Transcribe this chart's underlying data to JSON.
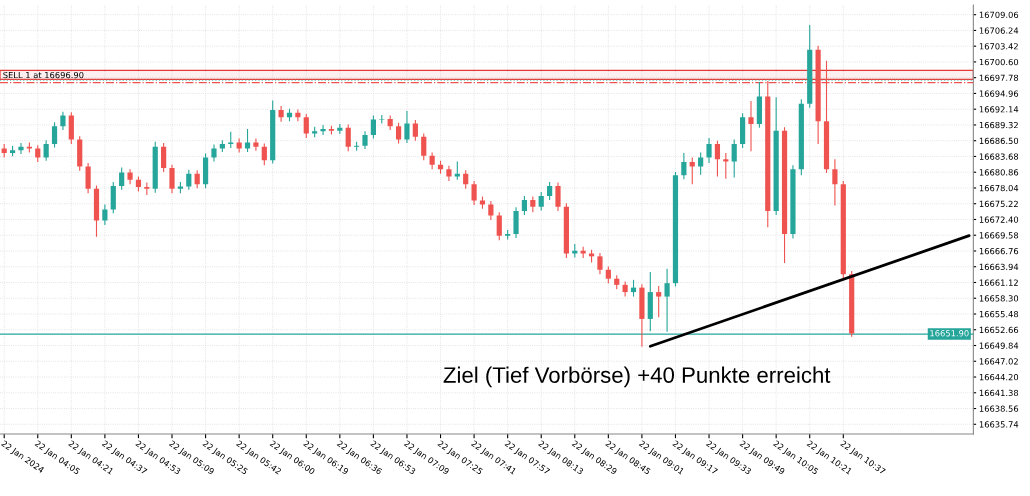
{
  "chart_data": {
    "type": "candlestick",
    "annotations": [
      "Ziel (Tief Vorbörse) +40 Punkte erreicht"
    ],
    "categories": [
      "22 Jan 2024",
      null,
      null,
      null,
      "22 Jan 04:05",
      null,
      null,
      null,
      "22 Jan 04:21",
      null,
      null,
      null,
      "22 Jan 04:37",
      null,
      null,
      null,
      "22 Jan 04:53",
      null,
      null,
      null,
      "22 Jan 05:09",
      null,
      null,
      null,
      "22 Jan 05:25",
      null,
      null,
      null,
      "22 Jan 05:42",
      null,
      null,
      null,
      "22 Jan 06:00",
      null,
      null,
      null,
      "22 Jan 06:19",
      null,
      null,
      null,
      "22 Jan 06:36",
      null,
      null,
      null,
      "22 Jan 06:53",
      null,
      null,
      null,
      "22 Jan 07:09",
      null,
      null,
      null,
      "22 Jan 07:25",
      null,
      null,
      null,
      "22 Jan 07:41",
      null,
      null,
      null,
      "22 Jan 07:57",
      null,
      null,
      null,
      "22 Jan 08:13",
      null,
      null,
      null,
      "22 Jan 08:29",
      null,
      null,
      null,
      "22 Jan 08:45",
      null,
      null,
      null,
      "22 Jan 09:01",
      null,
      null,
      null,
      "22 Jan 09:17",
      null,
      null,
      null,
      "22 Jan 09:33",
      null,
      null,
      null,
      "22 Jan 09:49",
      null,
      null,
      null,
      "22 Jan 10:05",
      null,
      null,
      null,
      "22 Jan 10:21",
      null,
      null,
      null,
      "22 Jan 10:37",
      null,
      null,
      null,
      null,
      null,
      null,
      null,
      null,
      null,
      null,
      null,
      null,
      null,
      null,
      null
    ],
    "ohlc": [
      [
        16685.1,
        16685.8,
        16683.6,
        16684.3
      ],
      [
        16684.3,
        16685.5,
        16683.8,
        16684.8
      ],
      [
        16684.8,
        16686.0,
        16684.2,
        16685.4
      ],
      [
        16685.4,
        16686.1,
        16684.5,
        16685.1
      ],
      [
        16685.1,
        16685.6,
        16682.8,
        16683.5
      ],
      [
        16683.5,
        16686.5,
        16683.0,
        16685.9
      ],
      [
        16685.9,
        16689.7,
        16685.4,
        16689.1
      ],
      [
        16689.1,
        16691.6,
        16688.5,
        16691.0
      ],
      [
        16691.0,
        16691.5,
        16686.0,
        16686.7
      ],
      [
        16686.7,
        16687.2,
        16681.2,
        16681.9
      ],
      [
        16681.9,
        16682.4,
        16677.2,
        16677.9
      ],
      [
        16677.9,
        16678.4,
        16669.4,
        16672.2
      ],
      [
        16672.2,
        16675.0,
        16671.5,
        16674.2
      ],
      [
        16674.2,
        16679.0,
        16673.6,
        16678.4
      ],
      [
        16678.4,
        16681.6,
        16677.8,
        16680.8
      ],
      [
        16680.8,
        16681.3,
        16678.8,
        16679.5
      ],
      [
        16679.5,
        16680.0,
        16677.5,
        16678.2
      ],
      [
        16678.2,
        16678.9,
        16676.9,
        16677.9
      ],
      [
        16677.9,
        16686.2,
        16677.3,
        16685.4
      ],
      [
        16685.4,
        16686.0,
        16681.0,
        16681.6
      ],
      [
        16681.6,
        16682.1,
        16677.2,
        16677.9
      ],
      [
        16677.9,
        16679.0,
        16677.2,
        16678.3
      ],
      [
        16678.3,
        16681.2,
        16677.8,
        16680.6
      ],
      [
        16680.6,
        16681.1,
        16678.1,
        16678.7
      ],
      [
        16678.7,
        16684.1,
        16678.1,
        16683.5
      ],
      [
        16683.5,
        16685.7,
        16682.9,
        16685.1
      ],
      [
        16685.1,
        16686.5,
        16684.6,
        16685.9
      ],
      [
        16685.9,
        16688.0,
        16685.3,
        16686.2
      ],
      [
        16686.2,
        16686.8,
        16684.5,
        16685.1
      ],
      [
        16685.1,
        16688.5,
        16684.6,
        16686.2
      ],
      [
        16686.2,
        16686.8,
        16684.8,
        16685.4
      ],
      [
        16685.4,
        16685.9,
        16682.2,
        16683.0
      ],
      [
        16683.0,
        16693.6,
        16682.5,
        16692.0
      ],
      [
        16692.0,
        16692.6,
        16690.0,
        16690.7
      ],
      [
        16690.7,
        16692.1,
        16690.1,
        16691.5
      ],
      [
        16691.5,
        16692.0,
        16690.1,
        16690.7
      ],
      [
        16690.7,
        16691.2,
        16687.1,
        16687.8
      ],
      [
        16687.8,
        16688.9,
        16687.2,
        16688.2
      ],
      [
        16688.2,
        16689.2,
        16687.6,
        16688.6
      ],
      [
        16688.6,
        16689.1,
        16687.7,
        16688.3
      ],
      [
        16688.3,
        16689.4,
        16687.8,
        16688.8
      ],
      [
        16688.8,
        16689.3,
        16684.7,
        16685.4
      ],
      [
        16685.4,
        16686.2,
        16684.8,
        16685.6
      ],
      [
        16685.6,
        16688.1,
        16685.1,
        16687.5
      ],
      [
        16687.5,
        16690.9,
        16687.0,
        16690.3
      ],
      [
        16690.3,
        16691.0,
        16689.7,
        16690.4
      ],
      [
        16690.4,
        16690.9,
        16688.5,
        16689.1
      ],
      [
        16689.1,
        16689.6,
        16686.1,
        16686.7
      ],
      [
        16686.7,
        16691.7,
        16686.2,
        16689.6
      ],
      [
        16689.6,
        16690.1,
        16686.6,
        16687.2
      ],
      [
        16687.2,
        16687.7,
        16683.1,
        16683.8
      ],
      [
        16683.8,
        16684.3,
        16681.5,
        16682.2
      ],
      [
        16682.2,
        16682.8,
        16680.7,
        16681.4
      ],
      [
        16681.4,
        16681.9,
        16679.4,
        16680.1
      ],
      [
        16680.1,
        16682.7,
        16679.6,
        16680.6
      ],
      [
        16680.6,
        16681.1,
        16678.0,
        16678.7
      ],
      [
        16678.7,
        16679.2,
        16675.1,
        16675.8
      ],
      [
        16675.8,
        16676.4,
        16674.4,
        16675.1
      ],
      [
        16675.1,
        16675.6,
        16672.4,
        16673.1
      ],
      [
        16673.1,
        16673.6,
        16668.8,
        16669.5
      ],
      [
        16669.5,
        16670.4,
        16668.9,
        16669.8
      ],
      [
        16669.8,
        16674.5,
        16669.2,
        16673.9
      ],
      [
        16673.9,
        16676.5,
        16673.3,
        16675.9
      ],
      [
        16675.9,
        16676.4,
        16673.8,
        16674.7
      ],
      [
        16674.7,
        16677.2,
        16674.1,
        16676.6
      ],
      [
        16676.6,
        16679.0,
        16676.0,
        16678.4
      ],
      [
        16678.4,
        16678.9,
        16674.0,
        16674.7
      ],
      [
        16674.7,
        16675.2,
        16665.6,
        16666.3
      ],
      [
        16666.3,
        16667.9,
        16665.7,
        16666.8
      ],
      [
        16666.8,
        16667.4,
        16665.6,
        16666.3
      ],
      [
        16666.3,
        16666.9,
        16664.8,
        16665.8
      ],
      [
        16665.8,
        16666.3,
        16662.7,
        16663.4
      ],
      [
        16663.4,
        16663.9,
        16661.1,
        16661.8
      ],
      [
        16661.8,
        16662.3,
        16660.0,
        16660.7
      ],
      [
        16660.7,
        16661.2,
        16658.7,
        16659.4
      ],
      [
        16659.4,
        16661.5,
        16658.7,
        16660.2
      ],
      [
        16660.2,
        16660.7,
        16649.7,
        16654.6
      ],
      [
        16654.6,
        16662.9,
        16652.5,
        16659.4
      ],
      [
        16659.4,
        16660.4,
        16655.0,
        16658.6
      ],
      [
        16658.6,
        16663.5,
        16652.4,
        16661.0
      ],
      [
        16661.0,
        16680.8,
        16660.5,
        16680.3
      ],
      [
        16680.3,
        16684.2,
        16679.7,
        16682.7
      ],
      [
        16682.7,
        16683.4,
        16678.8,
        16681.9
      ],
      [
        16681.9,
        16684.3,
        16680.5,
        16683.5
      ],
      [
        16683.5,
        16686.9,
        16682.6,
        16685.9
      ],
      [
        16685.9,
        16686.4,
        16680.2,
        16683.2
      ],
      [
        16683.2,
        16684.2,
        16679.8,
        16682.8
      ],
      [
        16682.8,
        16686.6,
        16680.0,
        16685.9
      ],
      [
        16685.9,
        16691.3,
        16685.3,
        16690.7
      ],
      [
        16690.7,
        16693.5,
        16684.7,
        16689.5
      ],
      [
        16689.5,
        16696.9,
        16688.9,
        16694.4
      ],
      [
        16694.4,
        16697.1,
        16671.1,
        16673.9
      ],
      [
        16673.9,
        16694.2,
        16673.3,
        16688.3
      ],
      [
        16688.3,
        16688.8,
        16664.7,
        16669.8
      ],
      [
        16669.8,
        16682.0,
        16669.1,
        16681.4
      ],
      [
        16681.4,
        16693.8,
        16680.4,
        16693.1
      ],
      [
        16693.1,
        16707.1,
        16692.5,
        16702.8
      ],
      [
        16702.8,
        16703.4,
        16686.0,
        16690.0
      ],
      [
        16690.0,
        16700.7,
        16680.8,
        16681.4
      ],
      [
        16681.4,
        16683.1,
        16675.0,
        16678.7
      ],
      [
        16678.7,
        16679.2,
        16661.9,
        16662.6
      ],
      [
        16662.6,
        16663.1,
        16651.5,
        16652.0
      ],
      null,
      null,
      null,
      null,
      null,
      null,
      null,
      null,
      null,
      null,
      null,
      null,
      null,
      null
    ],
    "colors": [
      "#ef5350",
      "#26a69a",
      "#26a69a",
      "#ef5350",
      "#ef5350",
      "#26a69a",
      "#26a69a",
      "#26a69a",
      "#ef5350",
      "#ef5350",
      "#ef5350",
      "#ef5350",
      "#26a69a",
      "#26a69a",
      "#26a69a",
      "#ef5350",
      "#ef5350",
      "#ef5350",
      "#26a69a",
      "#ef5350",
      "#ef5350",
      "#26a69a",
      "#26a69a",
      "#ef5350",
      "#26a69a",
      "#26a69a",
      "#26a69a",
      "#26a69a",
      "#ef5350",
      "#26a69a",
      "#ef5350",
      "#ef5350",
      "#26a69a",
      "#ef5350",
      "#26a69a",
      "#ef5350",
      "#ef5350",
      "#26a69a",
      "#26a69a",
      "#ef5350",
      "#26a69a",
      "#ef5350",
      "#26a69a",
      "#26a69a",
      "#26a69a",
      "#26a69a",
      "#ef5350",
      "#ef5350",
      "#26a69a",
      "#ef5350",
      "#ef5350",
      "#ef5350",
      "#ef5350",
      "#ef5350",
      "#26a69a",
      "#ef5350",
      "#ef5350",
      "#ef5350",
      "#ef5350",
      "#ef5350",
      "#26a69a",
      "#26a69a",
      "#26a69a",
      "#ef5350",
      "#26a69a",
      "#26a69a",
      "#ef5350",
      "#ef5350",
      "#26a69a",
      "#ef5350",
      "#ef5350",
      "#ef5350",
      "#ef5350",
      "#ef5350",
      "#ef5350",
      "#26a69a",
      "#ef5350",
      "#26a69a",
      "#ef5350",
      "#26a69a",
      "#26a69a",
      "#26a69a",
      "#ef5350",
      "#26a69a",
      "#26a69a",
      "#ef5350",
      "#ef5350",
      "#26a69a",
      "#26a69a",
      "#ef5350",
      "#26a69a",
      "#ef5350",
      "#26a69a",
      "#ef5350",
      "#26a69a",
      "#26a69a",
      "#26a69a",
      "#ef5350",
      "#ef5350",
      "#ef5350",
      "#ef5350",
      "#ef5350",
      null,
      null,
      null,
      null,
      null,
      null,
      null,
      null,
      null,
      null,
      null,
      null,
      null,
      null
    ],
    "series": [
      {
        "type": "line",
        "color": "#000000",
        "values": [
          null,
          null,
          null,
          null,
          null,
          null,
          null,
          null,
          null,
          null,
          null,
          null,
          null,
          null,
          null,
          null,
          null,
          null,
          null,
          null,
          null,
          null,
          null,
          null,
          null,
          null,
          null,
          null,
          null,
          null,
          null,
          null,
          null,
          null,
          null,
          null,
          null,
          null,
          null,
          null,
          null,
          null,
          null,
          null,
          null,
          null,
          null,
          null,
          null,
          null,
          null,
          null,
          null,
          null,
          null,
          null,
          null,
          null,
          null,
          null,
          null,
          null,
          null,
          null,
          null,
          null,
          null,
          null,
          null,
          null,
          null,
          null,
          null,
          null,
          null,
          null,
          null,
          16649.7,
          null,
          null,
          null,
          null,
          null,
          null,
          null,
          null,
          null,
          null,
          null,
          null,
          null,
          null,
          null,
          null,
          null,
          null,
          null,
          null,
          null,
          null,
          null,
          null,
          null,
          null,
          null,
          null,
          null,
          null,
          null,
          null,
          null,
          null,
          null,
          null,
          null,
          16669.5
        ]
      }
    ],
    "ylim": [
      16634.0,
      16710.8
    ],
    "yticks": [
      {
        "value": 16709.06,
        "label": "16709.06"
      },
      {
        "value": 16706.24,
        "label": "16706.24"
      },
      {
        "value": 16703.42,
        "label": "16703.42"
      },
      {
        "value": 16700.6,
        "label": "16700.60"
      },
      {
        "value": 16697.78,
        "label": "16697.78"
      },
      {
        "value": 16694.96,
        "label": "16694.96"
      },
      {
        "value": 16692.14,
        "label": "16692.14"
      },
      {
        "value": 16689.32,
        "label": "16689.32"
      },
      {
        "value": 16686.5,
        "label": "16686.50"
      },
      {
        "value": 16683.68,
        "label": "16683.68"
      },
      {
        "value": 16680.86,
        "label": "16680.86"
      },
      {
        "value": 16678.04,
        "label": "16678.04"
      },
      {
        "value": 16675.22,
        "label": "16675.22"
      },
      {
        "value": 16672.4,
        "label": "16672.40"
      },
      {
        "value": 16669.58,
        "label": "16669.58"
      },
      {
        "value": 16666.76,
        "label": "16666.76"
      },
      {
        "value": 16663.94,
        "label": "16663.94"
      },
      {
        "value": 16661.12,
        "label": "16661.12"
      },
      {
        "value": 16658.3,
        "label": "16658.30"
      },
      {
        "value": 16655.48,
        "label": "16655.48"
      },
      {
        "value": 16652.66,
        "label": "16652.66"
      },
      {
        "value": 16649.84,
        "label": "16649.84"
      },
      {
        "value": 16647.02,
        "label": "16647.02"
      },
      {
        "value": 16644.2,
        "label": "16644.20"
      },
      {
        "value": 16641.38,
        "label": "16641.38"
      },
      {
        "value": 16638.56,
        "label": "16638.56"
      },
      {
        "value": 16635.74,
        "label": "16635.74"
      }
    ],
    "grid": true,
    "ref_lines": [
      {
        "axis": "y",
        "value": 16696.9,
        "label": "SELL 1 at 16696.90",
        "color": "#ef5350",
        "line_style": "dashdot"
      },
      {
        "axis": "y",
        "value": 16697.3,
        "label": null,
        "color": "#80cbc4",
        "line_style": "dotted"
      },
      {
        "axis": "y",
        "value": 16651.9,
        "label": "16651.90",
        "color": "#26a69a",
        "line_style": "solid"
      }
    ],
    "bands": [
      {
        "axis": "y",
        "from": 16697.5,
        "to": 16699.1,
        "label": null,
        "color": "#e53935"
      }
    ]
  }
}
